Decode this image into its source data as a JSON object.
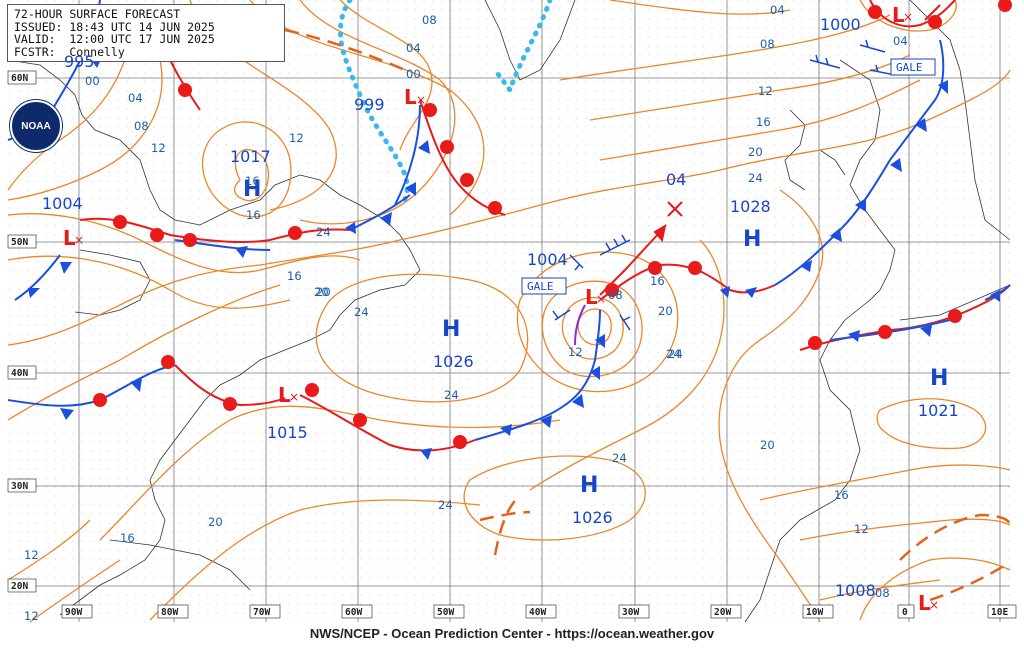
{
  "header": {
    "title": "72-HOUR SURFACE FORECAST",
    "issued": "ISSUED: 18:43 UTC 14 JUN 2025",
    "valid": "VALID:  12:00 UTC 17 JUN 2025",
    "forecaster": "FCSTR:  Connelly"
  },
  "footer": "NWS/NCEP - Ocean Prediction Center - https://ocean.weather.gov",
  "logo": "NOAA",
  "colors": {
    "isobar": "#e9872b",
    "cold_front": "#1a4fe0",
    "warm_front": "#e81a1a",
    "ice_edge": "#3ab8ee",
    "trough": "#e0641e",
    "occluded": "#8a2be2"
  },
  "lat_labels": [
    "60N",
    "50N",
    "40N",
    "30N",
    "20N"
  ],
  "lon_labels": [
    "90W",
    "80W",
    "70W",
    "60W",
    "50W",
    "40W",
    "30W",
    "20W",
    "10W",
    "0",
    "10E"
  ],
  "pressure_centers": [
    {
      "type": "L",
      "value": "995"
    },
    {
      "type": "L",
      "value": "999"
    },
    {
      "type": "H",
      "value": "1017"
    },
    {
      "type": "L",
      "value": "1004"
    },
    {
      "type": "L",
      "value": "1004"
    },
    {
      "type": "H",
      "value": "1026"
    },
    {
      "type": "L",
      "value": "1015"
    },
    {
      "type": "H",
      "value": "1028"
    },
    {
      "type": "H",
      "value": "1026"
    },
    {
      "type": "H",
      "value": "1021"
    },
    {
      "type": "L",
      "value": "1000"
    },
    {
      "type": "L",
      "value": "1008"
    }
  ],
  "isobar_labels": [
    "00",
    "04",
    "08",
    "12",
    "16",
    "20",
    "24",
    "08",
    "04",
    "00",
    "12",
    "16",
    "16",
    "20",
    "24",
    "04",
    "08",
    "12",
    "16",
    "20",
    "24",
    "24",
    "20",
    "16",
    "12",
    "08",
    "04",
    "24",
    "24",
    "20",
    "16",
    "12",
    "12",
    "08",
    "24",
    "16",
    "20",
    "24",
    "12"
  ],
  "warnings": [
    "GALE",
    "GALE"
  ],
  "new_low_marker": "04"
}
